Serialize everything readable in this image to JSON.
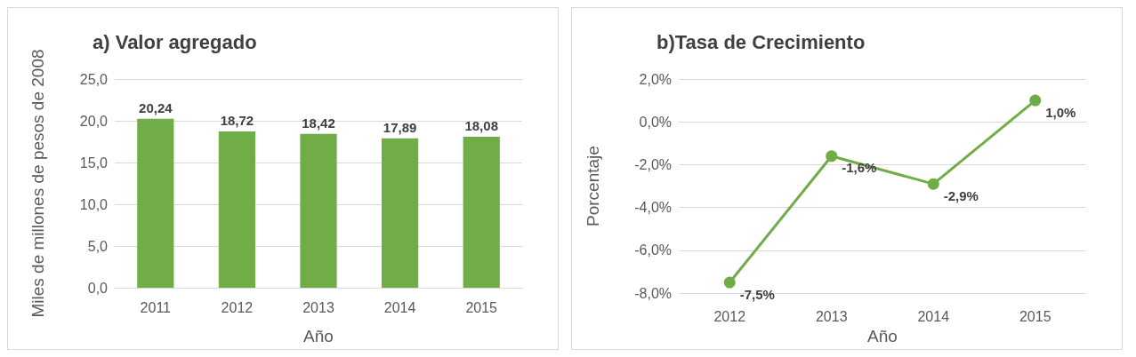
{
  "chart_data": [
    {
      "type": "bar",
      "title": "a) Valor agregado",
      "xlabel": "Año",
      "ylabel": "Miles de millones de pesos de 2008",
      "categories": [
        "2011",
        "2012",
        "2013",
        "2014",
        "2015"
      ],
      "values": [
        20.24,
        18.72,
        18.42,
        17.89,
        18.08
      ],
      "value_labels": [
        "20,24",
        "18,72",
        "18,42",
        "17,89",
        "18,08"
      ],
      "color": "#70ad47",
      "ylim": [
        0,
        25
      ],
      "yticks": [
        {
          "value": 0,
          "label": "0,0"
        },
        {
          "value": 5,
          "label": "5,0"
        },
        {
          "value": 10,
          "label": "10,0"
        },
        {
          "value": 15,
          "label": "15,0"
        },
        {
          "value": 20,
          "label": "20,0"
        },
        {
          "value": 25,
          "label": "25,0"
        }
      ],
      "grid": "y"
    },
    {
      "type": "line",
      "title": "b)Tasa de Crecimiento",
      "xlabel": "Año",
      "ylabel": "Porcentaje",
      "categories": [
        "2012",
        "2013",
        "2014",
        "2015"
      ],
      "values": [
        -7.5,
        -1.6,
        -2.9,
        1.0
      ],
      "value_labels": [
        "-7,5%",
        "-1,6%",
        "-2,9%",
        "1,0%"
      ],
      "color": "#70ad47",
      "ylim": [
        -8,
        2
      ],
      "yticks": [
        {
          "value": -8,
          "label": "-8,0%"
        },
        {
          "value": -6,
          "label": "-6,0%"
        },
        {
          "value": -4,
          "label": "-4,0%"
        },
        {
          "value": -2,
          "label": "-2,0%"
        },
        {
          "value": 0,
          "label": "0,0%"
        },
        {
          "value": 2,
          "label": "2,0%"
        }
      ],
      "grid": "y",
      "marker": "circle",
      "line_style": "solid"
    }
  ]
}
